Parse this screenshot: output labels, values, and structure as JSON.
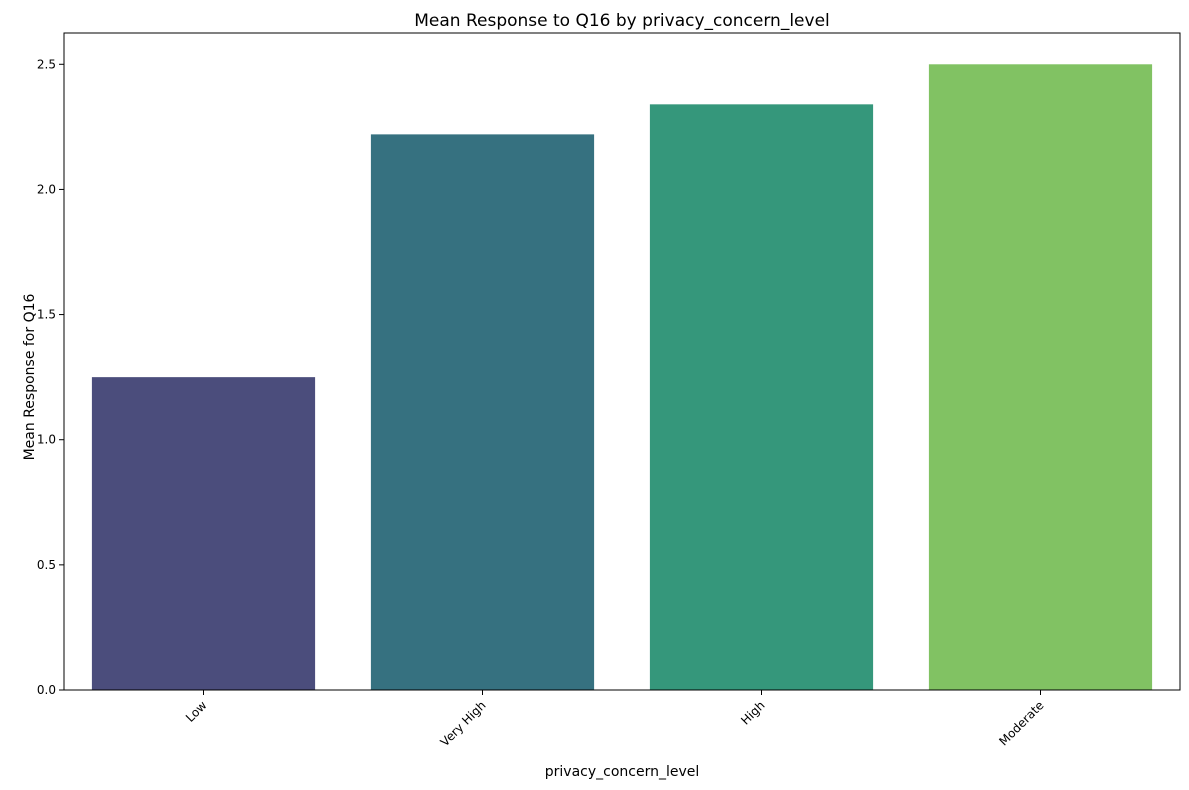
{
  "chart_data": {
    "type": "bar",
    "title": "Mean Response to Q16 by privacy_concern_level",
    "xlabel": "privacy_concern_level",
    "ylabel": "Mean Response for Q16",
    "categories": [
      "Low",
      "Very High",
      "High",
      "Moderate"
    ],
    "values": [
      1.25,
      2.22,
      2.34,
      2.5
    ],
    "colors": [
      "#4b4d7c",
      "#367180",
      "#35977b",
      "#81c263"
    ],
    "ylim": [
      0,
      2.625
    ],
    "yticks": [
      0.0,
      0.5,
      1.0,
      1.5,
      2.0,
      2.5
    ],
    "ytick_labels": [
      "0.0",
      "0.5",
      "1.0",
      "1.5",
      "2.0",
      "2.5"
    ],
    "grid": false,
    "legend": "none"
  }
}
